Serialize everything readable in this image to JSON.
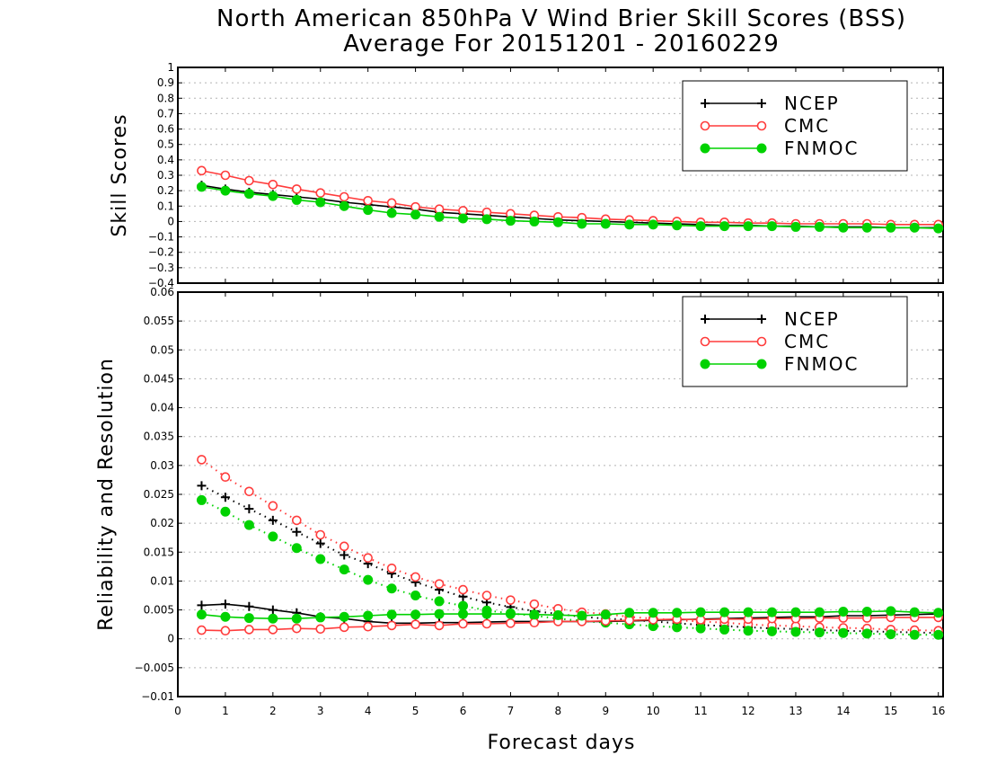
{
  "title_line1": "North American 850hPa V Wind Brier Skill Scores (BSS)",
  "title_line2": "Average For 20151201 - 20160229",
  "xlabel": "Forecast days",
  "colors": {
    "NCEP": "#000000",
    "CMC": "#ff3c3c",
    "FNMOC": "#00d200"
  },
  "chart_data": [
    {
      "type": "line",
      "panel": "top",
      "ylabel": "Skill Scores",
      "xlim": [
        0,
        16.1
      ],
      "ylim": [
        -0.4,
        1
      ],
      "xticks": [
        0,
        1,
        2,
        3,
        4,
        5,
        6,
        7,
        8,
        9,
        10,
        11,
        12,
        13,
        14,
        15,
        16
      ],
      "yticks": [
        -0.4,
        -0.3,
        -0.2,
        -0.1,
        0,
        0.1,
        0.2,
        0.3,
        0.4,
        0.5,
        0.6,
        0.7,
        0.8,
        0.9,
        1
      ],
      "ytick_labels": [
        "−0.4",
        "−0.3",
        "−0.2",
        "−0.1",
        "0",
        "0.1",
        "0.2",
        "0.3",
        "0.4",
        "0.5",
        "0.6",
        "0.7",
        "0.8",
        "0.9",
        "1"
      ],
      "grid": true,
      "legend": "top-right",
      "x": [
        0.5,
        1,
        1.5,
        2,
        2.5,
        3,
        3.5,
        4,
        4.5,
        5,
        5.5,
        6,
        6.5,
        7,
        7.5,
        8,
        8.5,
        9,
        9.5,
        10,
        10.5,
        11,
        11.5,
        12,
        12.5,
        13,
        13.5,
        14,
        14.5,
        15,
        15.5,
        16
      ],
      "series": [
        {
          "name": "NCEP",
          "marker": "plus",
          "style": "solid",
          "values": [
            0.235,
            0.21,
            0.19,
            0.175,
            0.16,
            0.145,
            0.125,
            0.11,
            0.095,
            0.08,
            0.06,
            0.05,
            0.04,
            0.03,
            0.02,
            0.01,
            0.005,
            0.0,
            -0.005,
            -0.01,
            -0.015,
            -0.02,
            -0.025,
            -0.025,
            -0.03,
            -0.03,
            -0.035,
            -0.035,
            -0.035,
            -0.04,
            -0.04,
            -0.04
          ]
        },
        {
          "name": "CMC",
          "marker": "open-circle",
          "style": "solid",
          "values": [
            0.33,
            0.3,
            0.265,
            0.24,
            0.21,
            0.185,
            0.16,
            0.135,
            0.12,
            0.095,
            0.08,
            0.07,
            0.06,
            0.05,
            0.04,
            0.03,
            0.025,
            0.015,
            0.01,
            0.005,
            0.0,
            -0.005,
            -0.005,
            -0.01,
            -0.01,
            -0.015,
            -0.015,
            -0.015,
            -0.015,
            -0.02,
            -0.02,
            -0.02
          ]
        },
        {
          "name": "FNMOC",
          "marker": "filled-circle",
          "style": "solid",
          "values": [
            0.225,
            0.2,
            0.18,
            0.165,
            0.14,
            0.125,
            0.1,
            0.075,
            0.055,
            0.045,
            0.03,
            0.02,
            0.015,
            0.005,
            0.0,
            -0.005,
            -0.015,
            -0.015,
            -0.02,
            -0.02,
            -0.025,
            -0.03,
            -0.03,
            -0.03,
            -0.03,
            -0.035,
            -0.035,
            -0.04,
            -0.04,
            -0.04,
            -0.04,
            -0.045
          ]
        }
      ]
    },
    {
      "type": "line",
      "panel": "bottom",
      "ylabel": "Reliability and Resolution",
      "xlabel": "Forecast days",
      "xlim": [
        0,
        16.1
      ],
      "ylim": [
        -0.01,
        0.06
      ],
      "xticks": [
        0,
        1,
        2,
        3,
        4,
        5,
        6,
        7,
        8,
        9,
        10,
        11,
        12,
        13,
        14,
        15,
        16
      ],
      "yticks": [
        -0.01,
        -0.005,
        0,
        0.005,
        0.01,
        0.015,
        0.02,
        0.025,
        0.03,
        0.035,
        0.04,
        0.045,
        0.05,
        0.055,
        0.06
      ],
      "ytick_labels": [
        "−0.01",
        "−0.005",
        "0",
        "0.005",
        "0.01",
        "0.015",
        "0.02",
        "0.025",
        "0.03",
        "0.035",
        "0.04",
        "0.045",
        "0.05",
        "0.055",
        "0.06"
      ],
      "grid": true,
      "legend": "top-right",
      "x": [
        0.5,
        1,
        1.5,
        2,
        2.5,
        3,
        3.5,
        4,
        4.5,
        5,
        5.5,
        6,
        6.5,
        7,
        7.5,
        8,
        8.5,
        9,
        9.5,
        10,
        10.5,
        11,
        11.5,
        12,
        12.5,
        13,
        13.5,
        14,
        14.5,
        15,
        15.5,
        16
      ],
      "series": [
        {
          "name": "NCEP",
          "marker": "plus",
          "style": "solid",
          "values": [
            0.0058,
            0.006,
            0.0056,
            0.005,
            0.0045,
            0.0038,
            0.0035,
            0.003,
            0.0027,
            0.0027,
            0.0028,
            0.0028,
            0.0029,
            0.003,
            0.003,
            0.003,
            0.003,
            0.003,
            0.0031,
            0.0032,
            0.0033,
            0.0034,
            0.0035,
            0.0036,
            0.0037,
            0.0038,
            0.0038,
            0.004,
            0.004,
            0.0041,
            0.0042,
            0.0043
          ]
        },
        {
          "name": "CMC",
          "marker": "open-circle",
          "style": "solid",
          "values": [
            0.0015,
            0.0014,
            0.0016,
            0.0016,
            0.0018,
            0.0017,
            0.002,
            0.0021,
            0.0023,
            0.0025,
            0.0023,
            0.0026,
            0.0026,
            0.0027,
            0.0028,
            0.003,
            0.003,
            0.0031,
            0.0032,
            0.0033,
            0.0034,
            0.0033,
            0.0034,
            0.0034,
            0.0035,
            0.0035,
            0.0036,
            0.0036,
            0.0036,
            0.0037,
            0.0037,
            0.0037
          ]
        },
        {
          "name": "FNMOC",
          "marker": "filled-circle",
          "style": "solid",
          "values": [
            0.0042,
            0.0038,
            0.0036,
            0.0035,
            0.0035,
            0.0037,
            0.0038,
            0.004,
            0.0042,
            0.0042,
            0.0043,
            0.0043,
            0.0043,
            0.0043,
            0.0042,
            0.0041,
            0.004,
            0.0042,
            0.0045,
            0.0045,
            0.0045,
            0.0046,
            0.0046,
            0.0046,
            0.0046,
            0.0046,
            0.0046,
            0.0047,
            0.0047,
            0.0048,
            0.0046,
            0.0045
          ]
        },
        {
          "name": "NCEP",
          "marker": "plus",
          "style": "dotted",
          "values": [
            0.0265,
            0.0245,
            0.0225,
            0.0205,
            0.0185,
            0.0165,
            0.0145,
            0.013,
            0.0113,
            0.0098,
            0.0085,
            0.0073,
            0.0063,
            0.0055,
            0.0048,
            0.0043,
            0.0038,
            0.0035,
            0.0033,
            0.003,
            0.0027,
            0.0024,
            0.0022,
            0.002,
            0.0018,
            0.0017,
            0.0015,
            0.0014,
            0.0013,
            0.0012,
            0.0011,
            0.001
          ]
        },
        {
          "name": "CMC",
          "marker": "open-circle",
          "style": "dotted",
          "values": [
            0.031,
            0.028,
            0.0255,
            0.023,
            0.0205,
            0.018,
            0.016,
            0.014,
            0.0122,
            0.0107,
            0.0095,
            0.0085,
            0.0075,
            0.0067,
            0.006,
            0.0052,
            0.0046,
            0.0043,
            0.0038,
            0.0035,
            0.0032,
            0.003,
            0.0028,
            0.0025,
            0.0023,
            0.0022,
            0.002,
            0.0019,
            0.0018,
            0.0016,
            0.0015,
            0.0014
          ]
        },
        {
          "name": "FNMOC",
          "marker": "filled-circle",
          "style": "dotted",
          "values": [
            0.024,
            0.022,
            0.0197,
            0.0177,
            0.0157,
            0.0138,
            0.012,
            0.0102,
            0.0087,
            0.0075,
            0.0065,
            0.0057,
            0.0049,
            0.0044,
            0.004,
            0.0035,
            0.0031,
            0.0028,
            0.0025,
            0.0022,
            0.002,
            0.0018,
            0.0016,
            0.0014,
            0.0013,
            0.0012,
            0.0011,
            0.001,
            0.0009,
            0.0008,
            0.0007,
            0.0007
          ]
        }
      ]
    }
  ]
}
